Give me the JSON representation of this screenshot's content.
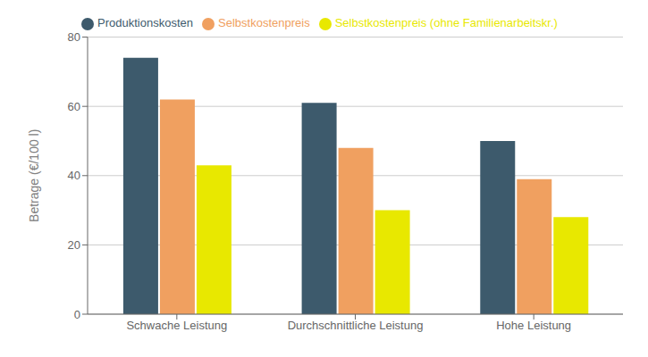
{
  "chart_data": {
    "type": "bar",
    "categories": [
      "Schwache Leistung",
      "Durchschnittliche Leistung",
      "Hohe Leistung"
    ],
    "series": [
      {
        "name": "Produktionskosten",
        "color": "#3d5a6c",
        "values": [
          74,
          61,
          50
        ]
      },
      {
        "name": "Selbstkostenpreis",
        "color": "#f0a060",
        "values": [
          62,
          48,
          39
        ]
      },
      {
        "name": "Selbstkostenpreis (ohne Familienarbeitskr.)",
        "color": "#e8e800",
        "values": [
          43,
          30,
          28
        ]
      }
    ],
    "ylabel": "Betrage (€/100 l)",
    "ylim": [
      0,
      80
    ],
    "yticks": [
      0,
      20,
      40,
      60,
      80
    ],
    "grid": true,
    "legend": "top"
  }
}
